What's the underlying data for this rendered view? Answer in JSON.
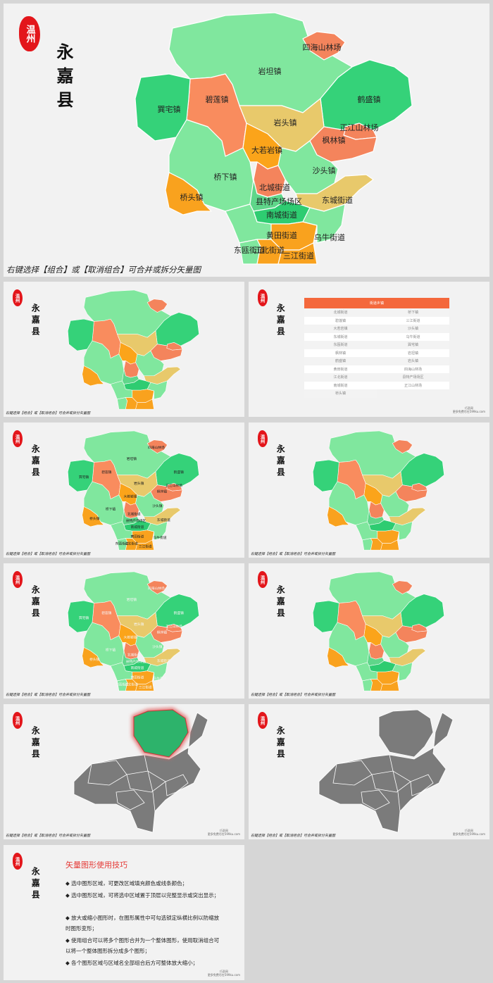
{
  "logo": {
    "seal": "温州",
    "county": "永嘉县"
  },
  "caption": "右键选择【组合】或【取消组合】可合并或拆分矢量图",
  "site": {
    "name": "巧圣网",
    "url": "更多免费尽在599ku.com"
  },
  "map_labels": [
    "四海山林场",
    "岩坦镇",
    "鹤盛镇",
    "碧莲镇",
    "巽宅镇",
    "岩头镇",
    "正江山林场",
    "枫林镇",
    "大若岩镇",
    "沙头镇",
    "桥下镇",
    "北城街道",
    "桥头镇",
    "县特产场场区",
    "东城街道",
    "南城街道",
    "黄田街道",
    "乌牛街道",
    "东瓯街道",
    "江北街道",
    "三江街道"
  ],
  "table": {
    "header": "街道乡镇",
    "rows": [
      [
        "北城街道",
        "桥下镇"
      ],
      [
        "碧莲镇",
        "三江街道"
      ],
      [
        "大若岩镇",
        "沙头镇"
      ],
      [
        "东城街道",
        "乌牛街道"
      ],
      [
        "东瓯街道",
        "巽宅镇"
      ],
      [
        "枫林镇",
        "岩坦镇"
      ],
      [
        "鹤盛镇",
        "岩头镇"
      ],
      [
        "黄田街道",
        "四海山林场"
      ],
      [
        "江北街道",
        "县特产场场区"
      ],
      [
        "南城街道",
        "正江山林场"
      ],
      [
        "桥头镇"
      ]
    ]
  },
  "tips": {
    "title": "矢量图形使用技巧",
    "items": [
      "◆ 选中图形区域，可更改区域填充颜色或线条颜色；",
      "◆ 选中图形区域，可将选中区域置于顶层以完整显示或突出显示；",
      "◆ 放大或缩小图形时，在图形属性中可勾选锁定纵横比例以防缩放时图形变形；",
      "◆ 使用组合可以将多个图形合并为一个整体图形，使用取消组合可以将一个整体图形拆分成多个图形；",
      "◆ 各个图形区域与区域名全部组合后方可整体放大缩小；"
    ]
  }
}
